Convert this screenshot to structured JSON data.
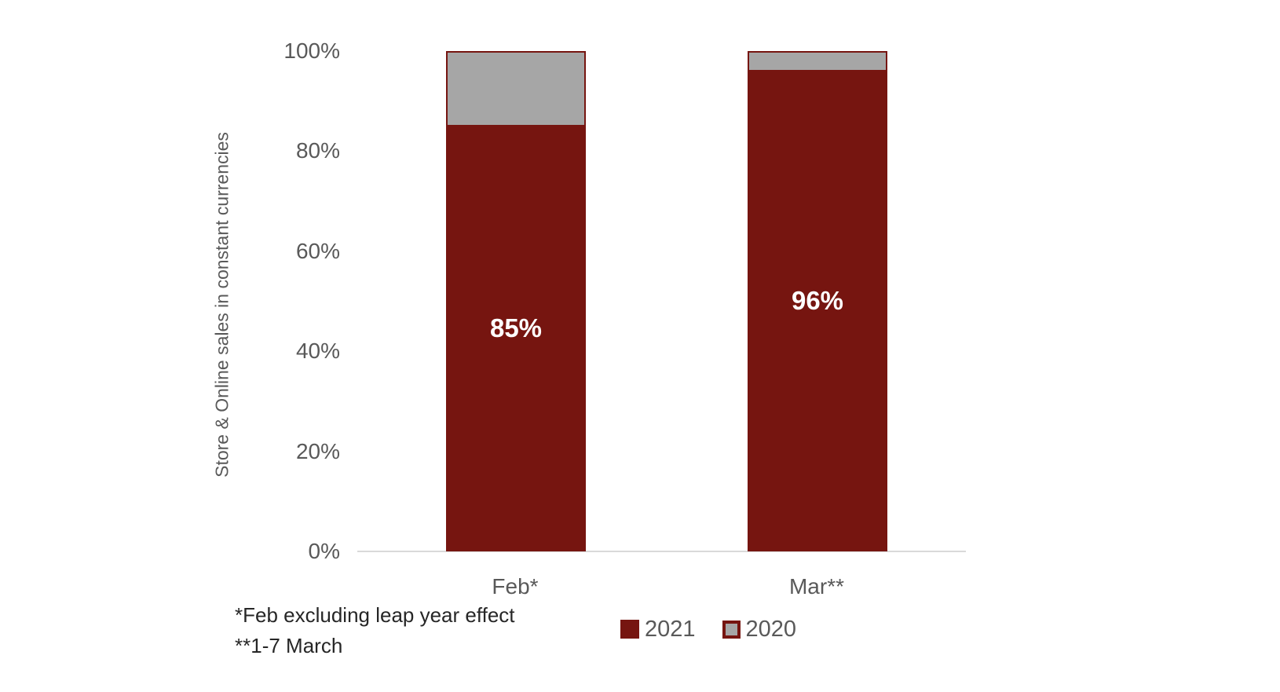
{
  "chart_data": {
    "type": "bar",
    "stacked": true,
    "title": "",
    "ylabel": "Store & Online sales in constant currencies",
    "xlabel": "",
    "categories": [
      "Feb*",
      "Mar**"
    ],
    "series": [
      {
        "name": "2021",
        "color": "#761510",
        "values": [
          85,
          96
        ]
      },
      {
        "name": "2020",
        "color": "#A6A6A6",
        "values": [
          15,
          4
        ]
      }
    ],
    "bar_labels": [
      "85%",
      "96%"
    ],
    "ylim": [
      0,
      100
    ],
    "yticks": [
      "100%",
      "80%",
      "60%",
      "40%",
      "20%",
      "0%"
    ],
    "grid": false,
    "legend_position": "bottom-center",
    "footnotes": [
      "*Feb excluding leap year effect",
      "**1-7 March"
    ],
    "colors": {
      "series_2021": "#761510",
      "series_2020": "#A6A6A6",
      "bar_border": "#761510",
      "axis_text": "#595959",
      "footnote_text": "#262626",
      "data_label_text": "#FFFFFF",
      "baseline": "#D9D9D9",
      "background": "#FFFFFF"
    }
  }
}
